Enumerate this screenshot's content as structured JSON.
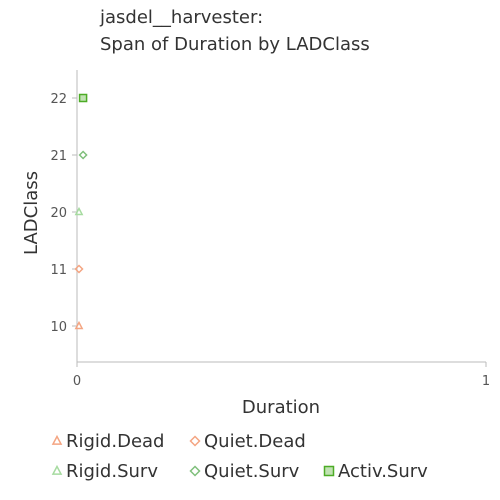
{
  "chart_data": {
    "type": "scatter",
    "title": [
      "jasdel__harvester:",
      "Span of Duration by LADClass"
    ],
    "xlabel": "Duration",
    "ylabel": "LADClass",
    "xlim": [
      0,
      1
    ],
    "x_ticks": [
      "0",
      "1"
    ],
    "y_categories": [
      "10",
      "11",
      "20",
      "21",
      "22"
    ],
    "grid": false,
    "legend_position": "bottom",
    "series": [
      {
        "name": "Rigid.Dead",
        "marker": "triangle",
        "color": "#f4a582",
        "points": [
          {
            "x": 0,
            "y": "10"
          }
        ]
      },
      {
        "name": "Quiet.Dead",
        "marker": "diamond",
        "color": "#f4a582",
        "points": [
          {
            "x": 0,
            "y": "11"
          }
        ]
      },
      {
        "name": "Rigid.Surv",
        "marker": "triangle",
        "color": "#a6dba0",
        "points": [
          {
            "x": 0,
            "y": "20"
          }
        ]
      },
      {
        "name": "Quiet.Surv",
        "marker": "diamond",
        "color": "#7fbf7b",
        "points": [
          {
            "x": 0.01,
            "y": "21"
          }
        ]
      },
      {
        "name": "Activ.Surv",
        "marker": "square",
        "color": "#4dac26",
        "points": [
          {
            "x": 0.01,
            "y": "22"
          }
        ]
      }
    ]
  }
}
